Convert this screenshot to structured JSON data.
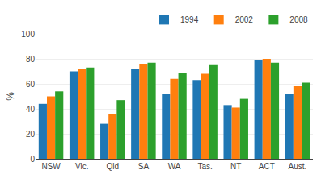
{
  "chart_data": {
    "type": "bar",
    "ylabel": "%",
    "categories": [
      "NSW",
      "Vic.",
      "Qld",
      "SA",
      "WA",
      "Tas.",
      "NT",
      "ACT",
      "Aust."
    ],
    "series": [
      {
        "name": "1994",
        "values": [
          44,
          70,
          28,
          72,
          52,
          63,
          43,
          79,
          52
        ]
      },
      {
        "name": "2002",
        "values": [
          50,
          72,
          36,
          76,
          64,
          68,
          41,
          80,
          58
        ]
      },
      {
        "name": "2008",
        "values": [
          54,
          73,
          47,
          77,
          69,
          75,
          48,
          77,
          61
        ]
      }
    ],
    "ylim": [
      0,
      100
    ],
    "yticks": [
      0,
      20,
      40,
      60,
      80,
      100
    ],
    "grid": true,
    "legend": "upper right"
  }
}
